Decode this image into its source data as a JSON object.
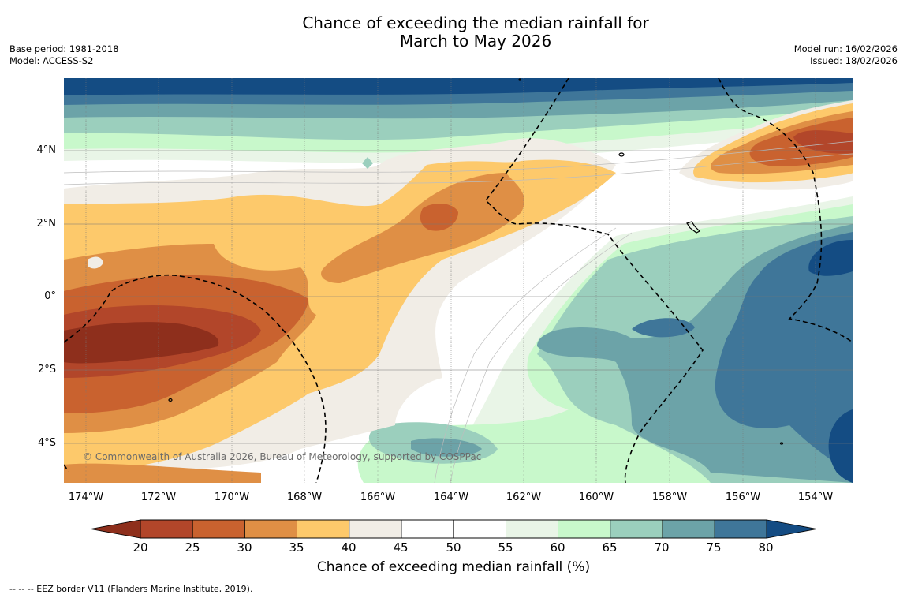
{
  "title": {
    "line1": "Chance of exceeding the median rainfall for",
    "line2": "March to May 2026"
  },
  "meta_left": {
    "base_period": "Base period: 1981-2018",
    "model": "Model: ACCESS-S2"
  },
  "meta_right": {
    "model_run": "Model run: 16/02/2026",
    "issued": "Issued: 18/02/2026"
  },
  "map": {
    "copyright": "© Commonwealth of Australia 2026, Bureau of Meteorology, supported by COSPPac",
    "lat_labels": [
      "4°N",
      "2°N",
      "0°",
      "2°S",
      "4°S"
    ],
    "lon_labels": [
      "174°W",
      "172°W",
      "170°W",
      "168°W",
      "166°W",
      "164°W",
      "162°W",
      "160°W",
      "158°W",
      "156°W",
      "154°W"
    ]
  },
  "colorbar": {
    "ticks": [
      "20",
      "25",
      "30",
      "35",
      "40",
      "45",
      "50",
      "55",
      "60",
      "65",
      "70",
      "75",
      "80"
    ],
    "colors": [
      "#8e2f1c",
      "#b2462a",
      "#c9622f",
      "#df8f45",
      "#fdc96b",
      "#f1ede6",
      "#ffffff",
      "#ffffff",
      "#e9f5e7",
      "#c8f8cb",
      "#9bcfbd",
      "#6ca3a8",
      "#3f7699",
      "#144c83"
    ],
    "label": "Chance of exceeding median rainfall (%)"
  },
  "footnote": "--  --  -- EEZ border V11 (Flanders Marine Institute, 2019)."
}
